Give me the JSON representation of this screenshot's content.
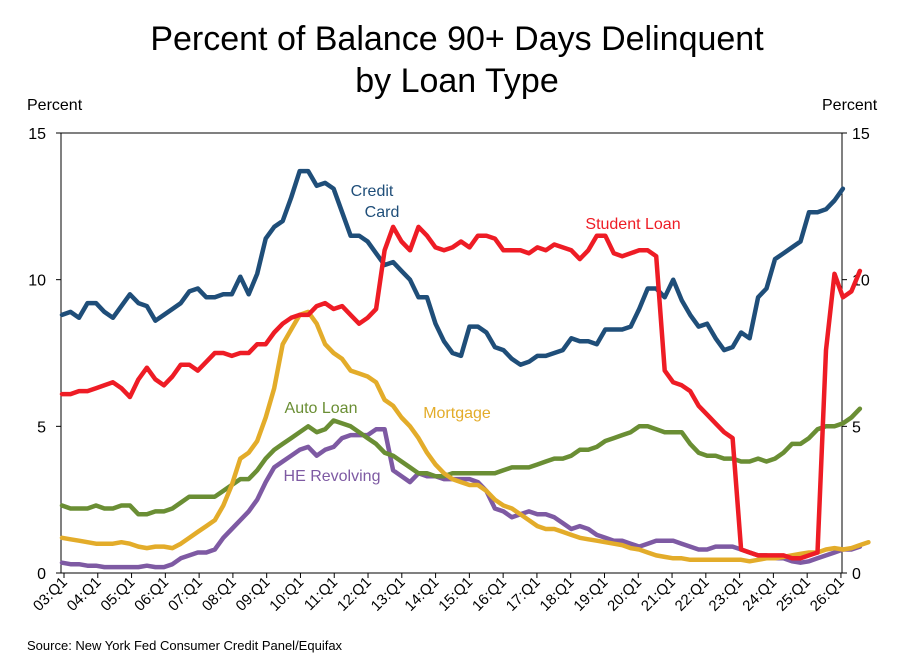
{
  "colors": {
    "credit_card": "#1f4e79",
    "student_loan": "#ee1c25",
    "mortgage": "#e3ac2a",
    "auto_loan": "#6a8e34",
    "he_revolving": "#7e5aa3"
  },
  "chart_data": {
    "type": "line",
    "title": "Percent of Balance 90+ Days Delinquent",
    "subtitle": "by Loan Type",
    "ylabel_left": "Percent",
    "ylabel_right": "Percent",
    "ylim": [
      0,
      15
    ],
    "yticks": [
      "0",
      "5",
      "10",
      "15"
    ],
    "x_tick_labels": [
      "03:Q1",
      "04:Q1",
      "05:Q1",
      "06:Q1",
      "07:Q1",
      "08:Q1",
      "09:Q1",
      "10:Q1",
      "11:Q1",
      "12:Q1",
      "13:Q1",
      "14:Q1",
      "15:Q1",
      "16:Q1",
      "17:Q1",
      "18:Q1",
      "19:Q1",
      "20:Q1",
      "21:Q1",
      "22:Q1",
      "23:Q1",
      "24:Q1",
      "25:Q1",
      "26:Q1"
    ],
    "source": "Source: New York Fed Consumer Credit Panel/Equifax",
    "grid": false,
    "series": [
      {
        "name": "Credit Card",
        "label_lines": [
          "Credit",
          "Card"
        ],
        "color_key": "credit_card",
        "values": [
          8.8,
          8.9,
          8.7,
          9.2,
          9.2,
          8.9,
          8.7,
          9.1,
          9.5,
          9.2,
          9.1,
          8.6,
          8.8,
          9.0,
          9.2,
          9.6,
          9.7,
          9.4,
          9.4,
          9.5,
          9.5,
          10.1,
          9.5,
          10.2,
          11.4,
          11.8,
          12.0,
          12.8,
          13.7,
          13.7,
          13.2,
          13.3,
          13.1,
          12.3,
          11.5,
          11.5,
          11.3,
          10.9,
          10.5,
          10.6,
          10.3,
          10.0,
          9.4,
          9.4,
          8.5,
          7.9,
          7.5,
          7.4,
          8.4,
          8.4,
          8.2,
          7.7,
          7.6,
          7.3,
          7.1,
          7.2,
          7.4,
          7.4,
          7.5,
          7.6,
          8.0,
          7.9,
          7.9,
          7.8,
          8.3,
          8.3,
          8.3,
          8.4,
          9.0,
          9.7,
          9.7,
          9.4,
          10.0,
          9.3,
          8.8,
          8.4,
          8.5,
          8.0,
          7.6,
          7.7,
          8.2,
          8.0,
          9.4,
          9.7,
          10.7,
          10.9,
          11.1,
          11.3,
          12.3,
          12.3,
          12.4,
          12.7,
          13.1
        ]
      },
      {
        "name": "Student Loan",
        "color_key": "student_loan",
        "values": [
          6.1,
          6.1,
          6.2,
          6.2,
          6.3,
          6.4,
          6.5,
          6.3,
          6.0,
          6.6,
          7.0,
          6.6,
          6.4,
          6.7,
          7.1,
          7.1,
          6.9,
          7.2,
          7.5,
          7.5,
          7.4,
          7.5,
          7.5,
          7.8,
          7.8,
          8.2,
          8.5,
          8.7,
          8.8,
          8.8,
          9.1,
          9.2,
          9.0,
          9.1,
          8.8,
          8.5,
          8.7,
          9.0,
          11.0,
          11.8,
          11.3,
          11.0,
          11.8,
          11.5,
          11.1,
          11.0,
          11.1,
          11.3,
          11.1,
          11.5,
          11.5,
          11.4,
          11.0,
          11.0,
          11.0,
          10.9,
          11.1,
          11.0,
          11.2,
          11.1,
          11.0,
          10.7,
          11.0,
          11.5,
          11.5,
          10.9,
          10.8,
          10.9,
          11.0,
          11.0,
          10.8,
          6.9,
          6.5,
          6.4,
          6.2,
          5.7,
          5.4,
          5.1,
          4.8,
          4.6,
          0.8,
          0.7,
          0.6,
          0.6,
          0.6,
          0.6,
          0.5,
          0.5,
          0.6,
          0.7,
          7.6,
          10.2,
          9.4,
          9.6,
          10.3
        ]
      },
      {
        "name": "Mortgage",
        "color_key": "mortgage",
        "values": [
          1.2,
          1.15,
          1.1,
          1.05,
          1.0,
          1.0,
          1.0,
          1.05,
          1.0,
          0.9,
          0.85,
          0.9,
          0.9,
          0.85,
          1.0,
          1.2,
          1.4,
          1.6,
          1.8,
          2.3,
          3.0,
          3.9,
          4.1,
          4.5,
          5.3,
          6.3,
          7.8,
          8.3,
          8.8,
          8.9,
          8.5,
          7.8,
          7.5,
          7.3,
          6.9,
          6.8,
          6.7,
          6.5,
          5.9,
          5.7,
          5.3,
          5.0,
          4.6,
          4.1,
          3.7,
          3.4,
          3.2,
          3.1,
          3.0,
          3.0,
          2.8,
          2.5,
          2.3,
          2.2,
          2.0,
          1.8,
          1.6,
          1.5,
          1.5,
          1.4,
          1.3,
          1.2,
          1.15,
          1.1,
          1.05,
          1.0,
          0.95,
          0.85,
          0.8,
          0.7,
          0.6,
          0.55,
          0.5,
          0.5,
          0.45,
          0.45,
          0.45,
          0.45,
          0.45,
          0.45,
          0.45,
          0.4,
          0.45,
          0.5,
          0.5,
          0.55,
          0.6,
          0.65,
          0.7,
          0.7,
          0.8,
          0.85,
          0.8,
          0.85,
          0.95,
          1.05
        ]
      },
      {
        "name": "Auto Loan",
        "color_key": "auto_loan",
        "values": [
          2.3,
          2.2,
          2.2,
          2.2,
          2.3,
          2.2,
          2.2,
          2.3,
          2.3,
          2.0,
          2.0,
          2.1,
          2.1,
          2.2,
          2.4,
          2.6,
          2.6,
          2.6,
          2.6,
          2.8,
          3.0,
          3.2,
          3.2,
          3.5,
          3.9,
          4.2,
          4.4,
          4.6,
          4.8,
          5.0,
          4.8,
          4.9,
          5.2,
          5.1,
          5.0,
          4.8,
          4.6,
          4.4,
          4.1,
          4.0,
          3.8,
          3.6,
          3.4,
          3.4,
          3.3,
          3.3,
          3.4,
          3.4,
          3.4,
          3.4,
          3.4,
          3.4,
          3.5,
          3.6,
          3.6,
          3.6,
          3.7,
          3.8,
          3.9,
          3.9,
          4.0,
          4.2,
          4.2,
          4.3,
          4.5,
          4.6,
          4.7,
          4.8,
          5.0,
          5.0,
          4.9,
          4.8,
          4.8,
          4.8,
          4.4,
          4.1,
          4.0,
          4.0,
          3.9,
          3.9,
          3.8,
          3.8,
          3.9,
          3.8,
          3.9,
          4.1,
          4.4,
          4.4,
          4.6,
          4.9,
          5.0,
          5.0,
          5.1,
          5.3,
          5.6
        ]
      },
      {
        "name": "HE Revolving",
        "color_key": "he_revolving",
        "values": [
          0.35,
          0.3,
          0.3,
          0.25,
          0.25,
          0.2,
          0.2,
          0.2,
          0.2,
          0.2,
          0.25,
          0.2,
          0.2,
          0.3,
          0.5,
          0.6,
          0.7,
          0.7,
          0.8,
          1.2,
          1.5,
          1.8,
          2.1,
          2.5,
          3.1,
          3.6,
          3.8,
          4.0,
          4.2,
          4.3,
          4.0,
          4.2,
          4.3,
          4.6,
          4.7,
          4.7,
          4.7,
          4.9,
          4.9,
          3.5,
          3.3,
          3.1,
          3.4,
          3.3,
          3.3,
          3.2,
          3.2,
          3.2,
          3.2,
          3.1,
          2.8,
          2.2,
          2.1,
          1.9,
          2.0,
          2.1,
          2.0,
          2.0,
          1.9,
          1.7,
          1.5,
          1.6,
          1.5,
          1.3,
          1.2,
          1.1,
          1.1,
          1.0,
          0.9,
          1.0,
          1.1,
          1.1,
          1.1,
          1.0,
          0.9,
          0.8,
          0.8,
          0.9,
          0.9,
          0.9,
          0.8,
          0.7,
          0.6,
          0.6,
          0.5,
          0.5,
          0.4,
          0.35,
          0.4,
          0.5,
          0.6,
          0.7,
          0.8,
          0.8,
          0.9
        ]
      }
    ]
  }
}
